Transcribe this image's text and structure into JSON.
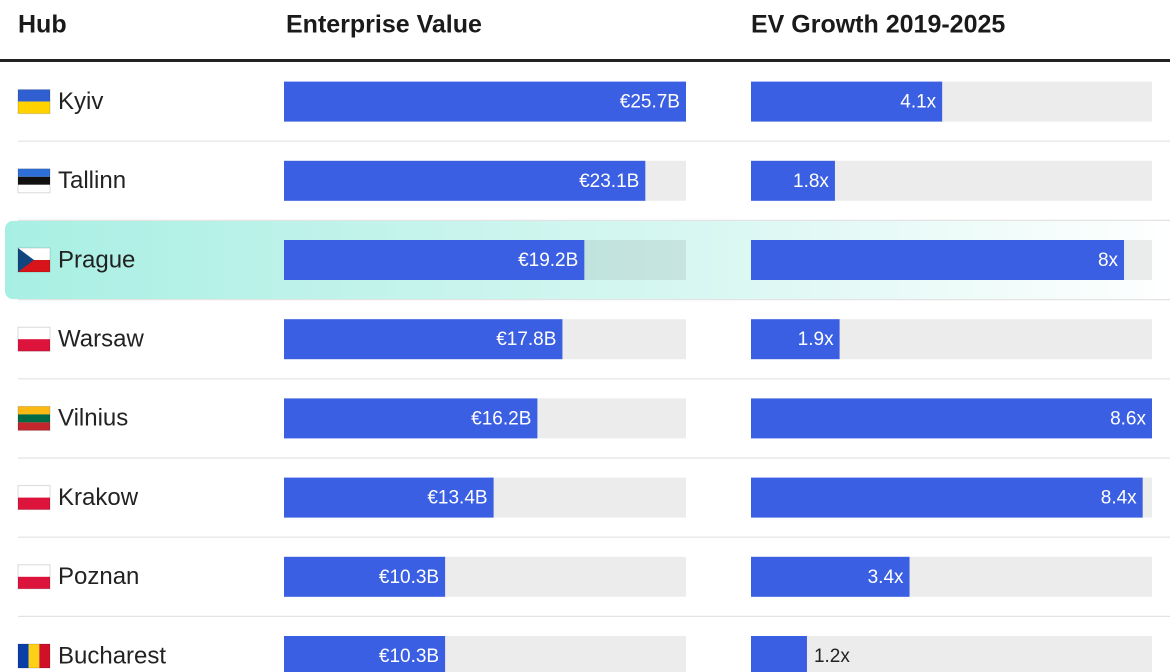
{
  "table": {
    "columns": [
      "Hub",
      "Enterprise Value",
      "EV Growth 2019-2025"
    ],
    "highlight": "Prague",
    "rows": [
      {
        "hub": "Kyiv",
        "enterprise_value": 25.7,
        "enterprise_value_label": "€25.7B",
        "ev_growth": 4.1,
        "ev_growth_label": "4.1x"
      },
      {
        "hub": "Tallinn",
        "enterprise_value": 23.1,
        "enterprise_value_label": "€23.1B",
        "ev_growth": 1.8,
        "ev_growth_label": "1.8x"
      },
      {
        "hub": "Prague",
        "enterprise_value": 19.2,
        "enterprise_value_label": "€19.2B",
        "ev_growth": 8,
        "ev_growth_label": "8x"
      },
      {
        "hub": "Warsaw",
        "enterprise_value": 17.8,
        "enterprise_value_label": "€17.8B",
        "ev_growth": 1.9,
        "ev_growth_label": "1.9x"
      },
      {
        "hub": "Vilnius",
        "enterprise_value": 16.2,
        "enterprise_value_label": "€16.2B",
        "ev_growth": 8.6,
        "ev_growth_label": "8.6x"
      },
      {
        "hub": "Krakow",
        "enterprise_value": 13.4,
        "enterprise_value_label": "€13.4B",
        "ev_growth": 8.4,
        "ev_growth_label": "8.4x"
      },
      {
        "hub": "Poznan",
        "enterprise_value": 10.3,
        "enterprise_value_label": "€10.3B",
        "ev_growth": 3.4,
        "ev_growth_label": "3.4x"
      },
      {
        "hub": "Bucharest",
        "enterprise_value": 10.3,
        "enterprise_value_label": "€10.3B",
        "ev_growth": 1.2,
        "ev_growth_label": "1.2x"
      }
    ]
  }
}
